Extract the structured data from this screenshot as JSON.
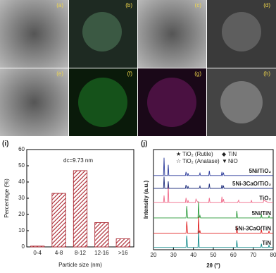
{
  "images": [
    {
      "label": "(a)"
    },
    {
      "label": "(b)"
    },
    {
      "label": "(c)"
    },
    {
      "label": "(d)"
    },
    {
      "label": "(e)"
    },
    {
      "label": "(f)"
    },
    {
      "label": "(g)"
    },
    {
      "label": "(h)"
    }
  ],
  "chart_data": [
    {
      "type": "bar",
      "panel": "(i)",
      "annotation": "dc=9.73 nm",
      "categories": [
        "0-4",
        "4-8",
        "8-12",
        "12-16",
        ">16"
      ],
      "values": [
        0.5,
        33,
        47,
        15,
        5
      ],
      "color": "#a8202a",
      "ylim": [
        0,
        60
      ],
      "yticks": [
        0,
        10,
        20,
        30,
        40,
        50,
        60
      ],
      "xlabel": "Particle size (nm)",
      "ylabel": "Percentage (%)"
    },
    {
      "type": "line",
      "panel": "(j)",
      "xlabel": "2θ (°)",
      "ylabel": "Intensity (a.u.)",
      "xlim": [
        20,
        80
      ],
      "xticks": [
        20,
        30,
        40,
        50,
        60,
        70,
        80
      ],
      "ylim": [
        0,
        85
      ],
      "legend": [
        {
          "symbol": "★",
          "label": "TiO₂ (Rutile)"
        },
        {
          "symbol": "☆",
          "label": "TiO₂ (Anatase)"
        },
        {
          "symbol": "◆",
          "label": "TiN"
        },
        {
          "symbol": "▼",
          "label": "NiO"
        }
      ],
      "x": [
        20,
        25.0,
        25.3,
        25.6,
        27.1,
        27.4,
        27.7,
        36.0,
        36.3,
        36.7,
        37.1,
        37.3,
        37.6,
        41.0,
        41.3,
        42.3,
        42.6,
        42.9,
        43.3,
        43.6,
        47.7,
        48.0,
        48.3,
        54.0,
        54.3,
        54.6,
        55.1,
        55.4,
        61.5,
        61.8,
        62.1,
        62.7,
        63.0,
        68.8,
        69.1,
        69.4,
        73.8,
        74.1,
        74.4,
        75.0,
        75.3,
        77.6,
        77.9,
        78.2,
        80
      ],
      "series": [
        {
          "name": "TiN",
          "color": "#138a8a",
          "values": [
            2,
            2,
            2,
            2,
            2,
            2,
            2,
            2,
            2,
            12,
            2,
            2,
            2,
            2,
            2,
            2,
            16,
            2,
            2,
            2,
            2,
            2,
            2,
            2,
            2,
            2,
            2,
            2,
            2,
            8,
            2,
            2,
            2,
            2,
            2,
            2,
            2,
            5,
            2,
            2,
            2,
            2,
            4,
            2,
            2
          ]
        },
        {
          "name": "5Ni-3CaO/TiN",
          "color": "#e02020",
          "values": [
            14,
            14,
            14,
            14,
            14,
            14,
            14,
            14,
            14,
            24,
            14,
            14,
            14,
            14,
            14,
            14,
            28,
            14,
            16,
            14,
            14,
            14,
            14,
            14,
            14,
            14,
            14,
            14,
            14,
            20,
            14,
            14,
            14,
            14,
            14,
            14,
            14,
            17,
            14,
            14,
            14,
            14,
            16,
            14,
            14
          ]
        },
        {
          "name": "5Ni/TiN",
          "color": "#2a9a3a",
          "values": [
            27,
            27,
            27,
            27,
            27,
            27,
            27,
            27,
            27,
            37,
            27,
            27,
            27,
            27,
            27,
            27,
            41,
            27,
            29,
            27,
            27,
            27,
            27,
            27,
            27,
            27,
            27,
            27,
            27,
            33,
            27,
            27,
            27,
            27,
            27,
            27,
            27,
            30,
            27,
            27,
            27,
            27,
            29,
            27,
            27
          ]
        },
        {
          "name": "TiO₂",
          "color": "#f06a8a",
          "values": [
            40,
            40,
            46,
            40,
            40,
            55,
            40,
            40,
            44,
            40,
            40,
            42,
            40,
            40,
            43,
            40,
            40,
            40,
            40,
            40,
            40,
            44,
            40,
            40,
            45,
            40,
            43,
            40,
            40,
            40,
            40,
            42,
            40,
            40,
            42,
            40,
            40,
            40,
            40,
            40,
            42,
            40,
            40,
            40,
            40
          ]
        },
        {
          "name": "5Ni-3CaO/TiO₂",
          "color": "#1a2a7a",
          "values": [
            52,
            52,
            62,
            52,
            52,
            58,
            52,
            52,
            55,
            52,
            52,
            54,
            52,
            52,
            52,
            52,
            52,
            52,
            54,
            52,
            52,
            56,
            52,
            52,
            55,
            52,
            54,
            52,
            52,
            52,
            52,
            52,
            52,
            52,
            52,
            52,
            52,
            52,
            52,
            52,
            52,
            52,
            52,
            52,
            52
          ]
        },
        {
          "name": "5Ni/TiO₂",
          "color": "#2a3a9a",
          "values": [
            63,
            63,
            78,
            63,
            63,
            72,
            63,
            63,
            66,
            63,
            63,
            65,
            63,
            63,
            63,
            63,
            63,
            63,
            65,
            63,
            63,
            67,
            63,
            63,
            66,
            63,
            65,
            63,
            63,
            63,
            63,
            63,
            63,
            63,
            63,
            63,
            63,
            63,
            63,
            63,
            63,
            63,
            63,
            63,
            63
          ]
        }
      ]
    }
  ]
}
